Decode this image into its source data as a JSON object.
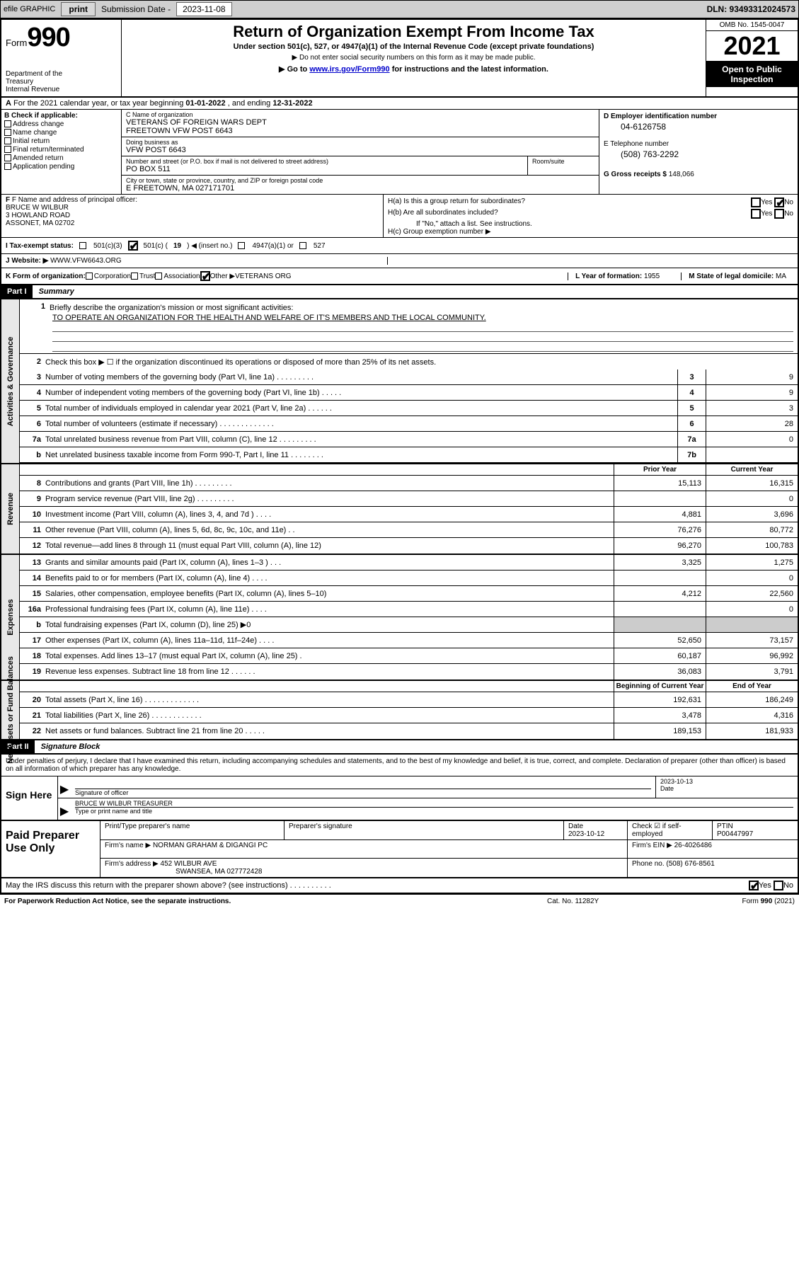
{
  "toolbar": {
    "efile": "efile GRAPHIC",
    "print": "print",
    "subm_label": "Submission Date - ",
    "subm_date": "2023-11-08",
    "dln": "DLN: 93493312024573"
  },
  "hdr": {
    "form_prefix": "Form",
    "form_num": "990",
    "dept": "Department of the Treasury\nInternal Revenue Service",
    "title": "Return of Organization Exempt From Income Tax",
    "sub": "Under section 501(c), 527, or 4947(a)(1) of the Internal Revenue Code (except private foundations)",
    "sub2": "▶ Do not enter social security numbers on this form as it may be made public.",
    "sub3a": "▶ Go to ",
    "sub3_link": "www.irs.gov/Form990",
    "sub3b": " for instructions and the latest information.",
    "omb": "OMB No. 1545-0047",
    "year": "2021",
    "open": "Open to Public Inspection"
  },
  "row_a": {
    "prefix": "A",
    "text": " For the 2021 calendar year, or tax year beginning ",
    "d1": "01-01-2022",
    "mid": " , and ending ",
    "d2": "12-31-2022"
  },
  "col_b": {
    "hdr": "B Check if applicable:",
    "opts": [
      "Address change",
      "Name change",
      "Initial return",
      "Final return/terminated",
      "Amended return",
      "Application pending"
    ]
  },
  "col_c": {
    "name_lab": "C Name of organization",
    "name1": "VETERANS OF FOREIGN WARS DEPT",
    "name2": "FREETOWN VFW POST 6643",
    "dba_lab": "Doing business as",
    "dba": "VFW POST 6643",
    "addr_lab": "Number and street (or P.O. box if mail is not delivered to street address)",
    "addr": "PO BOX 511",
    "room_lab": "Room/suite",
    "city_lab": "City or town, state or province, country, and ZIP or foreign postal code",
    "city": "E FREETOWN, MA  027171701"
  },
  "col_d": {
    "ein_lab": "D Employer identification number",
    "ein": "04-6126758",
    "tel_lab": "E Telephone number",
    "tel": "(508) 763-2292",
    "gross_lab": "G Gross receipts $ ",
    "gross": "148,066"
  },
  "col_f": {
    "lab": "F Name and address of principal officer:",
    "name": "BRUCE W WILBUR",
    "addr1": "3 HOWLAND ROAD",
    "addr2": "ASSONET, MA  02702"
  },
  "col_h": {
    "ha": "H(a)  Is this a group return for subordinates?",
    "hb": "H(b)  Are all subordinates included?",
    "hb2": "If \"No,\" attach a list. See instructions.",
    "hc": "H(c)  Group exemption number ▶",
    "yes": "Yes",
    "no": "No"
  },
  "row_i": {
    "lab": "I  Tax-exempt status:",
    "o1": "501(c)(3)",
    "o2a": "501(c) ( ",
    "o2n": "19",
    "o2b": " ) ◀ (insert no.)",
    "o3": "4947(a)(1) or",
    "o4": "527"
  },
  "row_j": {
    "lab": "J  Website: ▶",
    "val": "WWW.VFW6643.ORG"
  },
  "row_k": {
    "lab": "K Form of organization:",
    "opts": [
      "Corporation",
      "Trust",
      "Association",
      "Other ▶"
    ],
    "other": "VETERANS ORG",
    "l_lab": "L Year of formation: ",
    "l_val": "1955",
    "m_lab": "M State of legal domicile: ",
    "m_val": "MA"
  },
  "part1": {
    "hdr": "Part I",
    "title": "Summary",
    "l1a": "Briefly describe the organization's mission or most significant activities:",
    "l1b": "TO OPERATE AN ORGANIZATION FOR THE HEALTH AND WELFARE OF IT'S MEMBERS AND THE LOCAL COMMUNITY.",
    "l2": "Check this box ▶ ☐  if the organization discontinued its operations or disposed of more than 25% of its net assets.",
    "vlab_gov": "Activities & Governance",
    "vlab_rev": "Revenue",
    "vlab_exp": "Expenses",
    "vlab_net": "Net Assets or Fund Balances",
    "prior": "Prior Year",
    "current": "Current Year",
    "begin": "Beginning of Current Year",
    "end": "End of Year",
    "lines_gov": [
      {
        "n": "3",
        "t": "Number of voting members of the governing body (Part VI, line 1a)   .    .    .    .    .    .    .    .    .",
        "box": "3",
        "v": "9"
      },
      {
        "n": "4",
        "t": "Number of independent voting members of the governing body (Part VI, line 1b)    .    .    .    .    .",
        "box": "4",
        "v": "9"
      },
      {
        "n": "5",
        "t": "Total number of individuals employed in calendar year 2021 (Part V, line 2a)    .    .    .    .    .    .",
        "box": "5",
        "v": "3"
      },
      {
        "n": "6",
        "t": "Total number of volunteers (estimate if necessary)    .    .    .    .    .    .    .    .    .    .    .    .    .",
        "box": "6",
        "v": "28"
      },
      {
        "n": "7a",
        "t": "Total unrelated business revenue from Part VIII, column (C), line 12   .    .    .    .    .    .    .    .    .",
        "box": "7a",
        "v": "0"
      },
      {
        "n": "b",
        "t": "Net unrelated business taxable income from Form 990-T, Part I, line 11   .    .    .    .    .    .    .    .",
        "box": "7b",
        "v": ""
      }
    ],
    "lines_rev": [
      {
        "n": "8",
        "t": "Contributions and grants (Part VIII, line 1h)    .    .    .    .    .    .    .    .    .",
        "p": "15,113",
        "c": "16,315"
      },
      {
        "n": "9",
        "t": "Program service revenue (Part VIII, line 2g)    .    .    .    .    .    .    .    .    .",
        "p": "",
        "c": "0"
      },
      {
        "n": "10",
        "t": "Investment income (Part VIII, column (A), lines 3, 4, and 7d )    .    .    .    .",
        "p": "4,881",
        "c": "3,696"
      },
      {
        "n": "11",
        "t": "Other revenue (Part VIII, column (A), lines 5, 6d, 8c, 9c, 10c, and 11e)    .    .",
        "p": "76,276",
        "c": "80,772"
      },
      {
        "n": "12",
        "t": "Total revenue—add lines 8 through 11 (must equal Part VIII, column (A), line 12)",
        "p": "96,270",
        "c": "100,783"
      }
    ],
    "lines_exp": [
      {
        "n": "13",
        "t": "Grants and similar amounts paid (Part IX, column (A), lines 1–3 )    .    .    .",
        "p": "3,325",
        "c": "1,275"
      },
      {
        "n": "14",
        "t": "Benefits paid to or for members (Part IX, column (A), line 4)   .    .    .    .",
        "p": "",
        "c": "0"
      },
      {
        "n": "15",
        "t": "Salaries, other compensation, employee benefits (Part IX, column (A), lines 5–10)",
        "p": "4,212",
        "c": "22,560"
      },
      {
        "n": "16a",
        "t": "Professional fundraising fees (Part IX, column (A), line 11e)    .    .    .    .",
        "p": "",
        "c": "0"
      },
      {
        "n": "b",
        "t": "Total fundraising expenses (Part IX, column (D), line 25) ▶0",
        "p": "shade",
        "c": "shade"
      },
      {
        "n": "17",
        "t": "Other expenses (Part IX, column (A), lines 11a–11d, 11f–24e)   .    .    .    .",
        "p": "52,650",
        "c": "73,157"
      },
      {
        "n": "18",
        "t": "Total expenses. Add lines 13–17 (must equal Part IX, column (A), line 25)    .",
        "p": "60,187",
        "c": "96,992"
      },
      {
        "n": "19",
        "t": "Revenue less expenses. Subtract line 18 from line 12    .    .    .    .    .    .",
        "p": "36,083",
        "c": "3,791"
      }
    ],
    "lines_net": [
      {
        "n": "20",
        "t": "Total assets (Part X, line 16)   .    .    .    .    .    .    .    .    .    .    .    .    .",
        "p": "192,631",
        "c": "186,249"
      },
      {
        "n": "21",
        "t": "Total liabilities (Part X, line 26)   .    .    .    .    .    .    .    .    .    .    .    .",
        "p": "3,478",
        "c": "4,316"
      },
      {
        "n": "22",
        "t": "Net assets or fund balances. Subtract line 21 from line 20   .    .    .    .    .",
        "p": "189,153",
        "c": "181,933"
      }
    ]
  },
  "part2": {
    "hdr": "Part II",
    "title": "Signature Block",
    "intro": "Under penalties of perjury, I declare that I have examined this return, including accompanying schedules and statements, and to the best of my knowledge and belief, it is true, correct, and complete. Declaration of preparer (other than officer) is based on all information of which preparer has any knowledge.",
    "sign_here": "Sign Here",
    "sig_of": "Signature of officer",
    "date_lab": "Date",
    "date_val": "2023-10-13",
    "name": "BRUCE W WILBUR  TREASURER",
    "name_lab": "Type or print name and title",
    "paid": "Paid Preparer Use Only",
    "pt_name_lab": "Print/Type preparer's name",
    "pt_sig_lab": "Preparer's signature",
    "pt_date_lab": "Date",
    "pt_date": "2023-10-12",
    "pt_chk_lab": "Check ☑ if self-employed",
    "ptin_lab": "PTIN",
    "ptin": "P00447997",
    "firm_name_lab": "Firm's name    ▶",
    "firm_name": "NORMAN GRAHAM & DIGANGI PC",
    "firm_ein_lab": "Firm's EIN ▶",
    "firm_ein": "26-4026486",
    "firm_addr_lab": "Firm's address ▶",
    "firm_addr1": "452 WILBUR AVE",
    "firm_addr2": "SWANSEA, MA  027772428",
    "phone_lab": "Phone no. ",
    "phone": "(508) 676-8561",
    "may": "May the IRS discuss this return with the preparer shown above? (see instructions)    .    .    .    .    .    .    .    .    .    .",
    "yes": "Yes",
    "no": "No"
  },
  "footer": {
    "f1": "For Paperwork Reduction Act Notice, see the separate instructions.",
    "f2": "Cat. No. 11282Y",
    "f3": "Form 990 (2021)"
  }
}
